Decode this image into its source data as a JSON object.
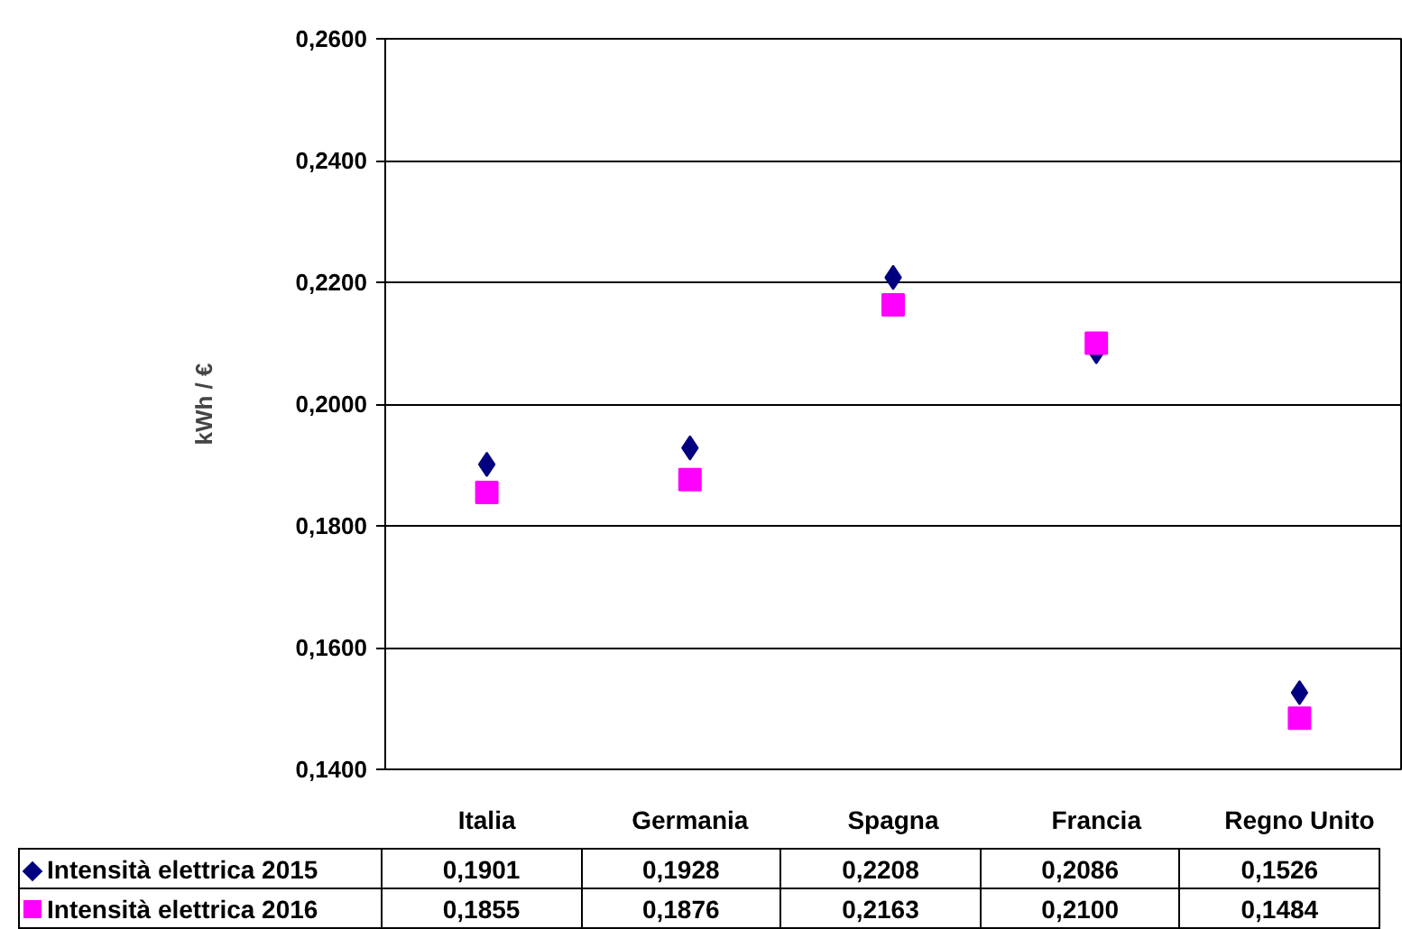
{
  "chart_data": {
    "type": "scatter",
    "ylabel": "kWh / €",
    "categories": [
      "Italia",
      "Germania",
      "Spagna",
      "Francia",
      "Regno Unito"
    ],
    "series": [
      {
        "name": "Intensità elettrica 2015",
        "color": "#000080",
        "marker": "diamond",
        "values": [
          0.1901,
          0.1928,
          0.2208,
          0.2086,
          0.1526
        ],
        "value_labels": [
          "0,1901",
          "0,1928",
          "0,2208",
          "0,2086",
          "0,1526"
        ]
      },
      {
        "name": "Intensità elettrica 2016",
        "color": "#ff00ff",
        "marker": "square",
        "values": [
          0.1855,
          0.1876,
          0.2163,
          0.21,
          0.1484
        ],
        "value_labels": [
          "0,1855",
          "0,1876",
          "0,2163",
          "0,2100",
          "0,1484"
        ]
      }
    ],
    "ylim": [
      0.14,
      0.26
    ],
    "yticks": [
      {
        "value": 0.14,
        "label": "0,1400"
      },
      {
        "value": 0.16,
        "label": "0,1600"
      },
      {
        "value": 0.18,
        "label": "0,1800"
      },
      {
        "value": 0.2,
        "label": "0,2000"
      },
      {
        "value": 0.22,
        "label": "0,2200"
      },
      {
        "value": 0.24,
        "label": "0,2400"
      },
      {
        "value": 0.26,
        "label": "0,2600"
      }
    ],
    "grid": "y",
    "legend": "bottom"
  }
}
